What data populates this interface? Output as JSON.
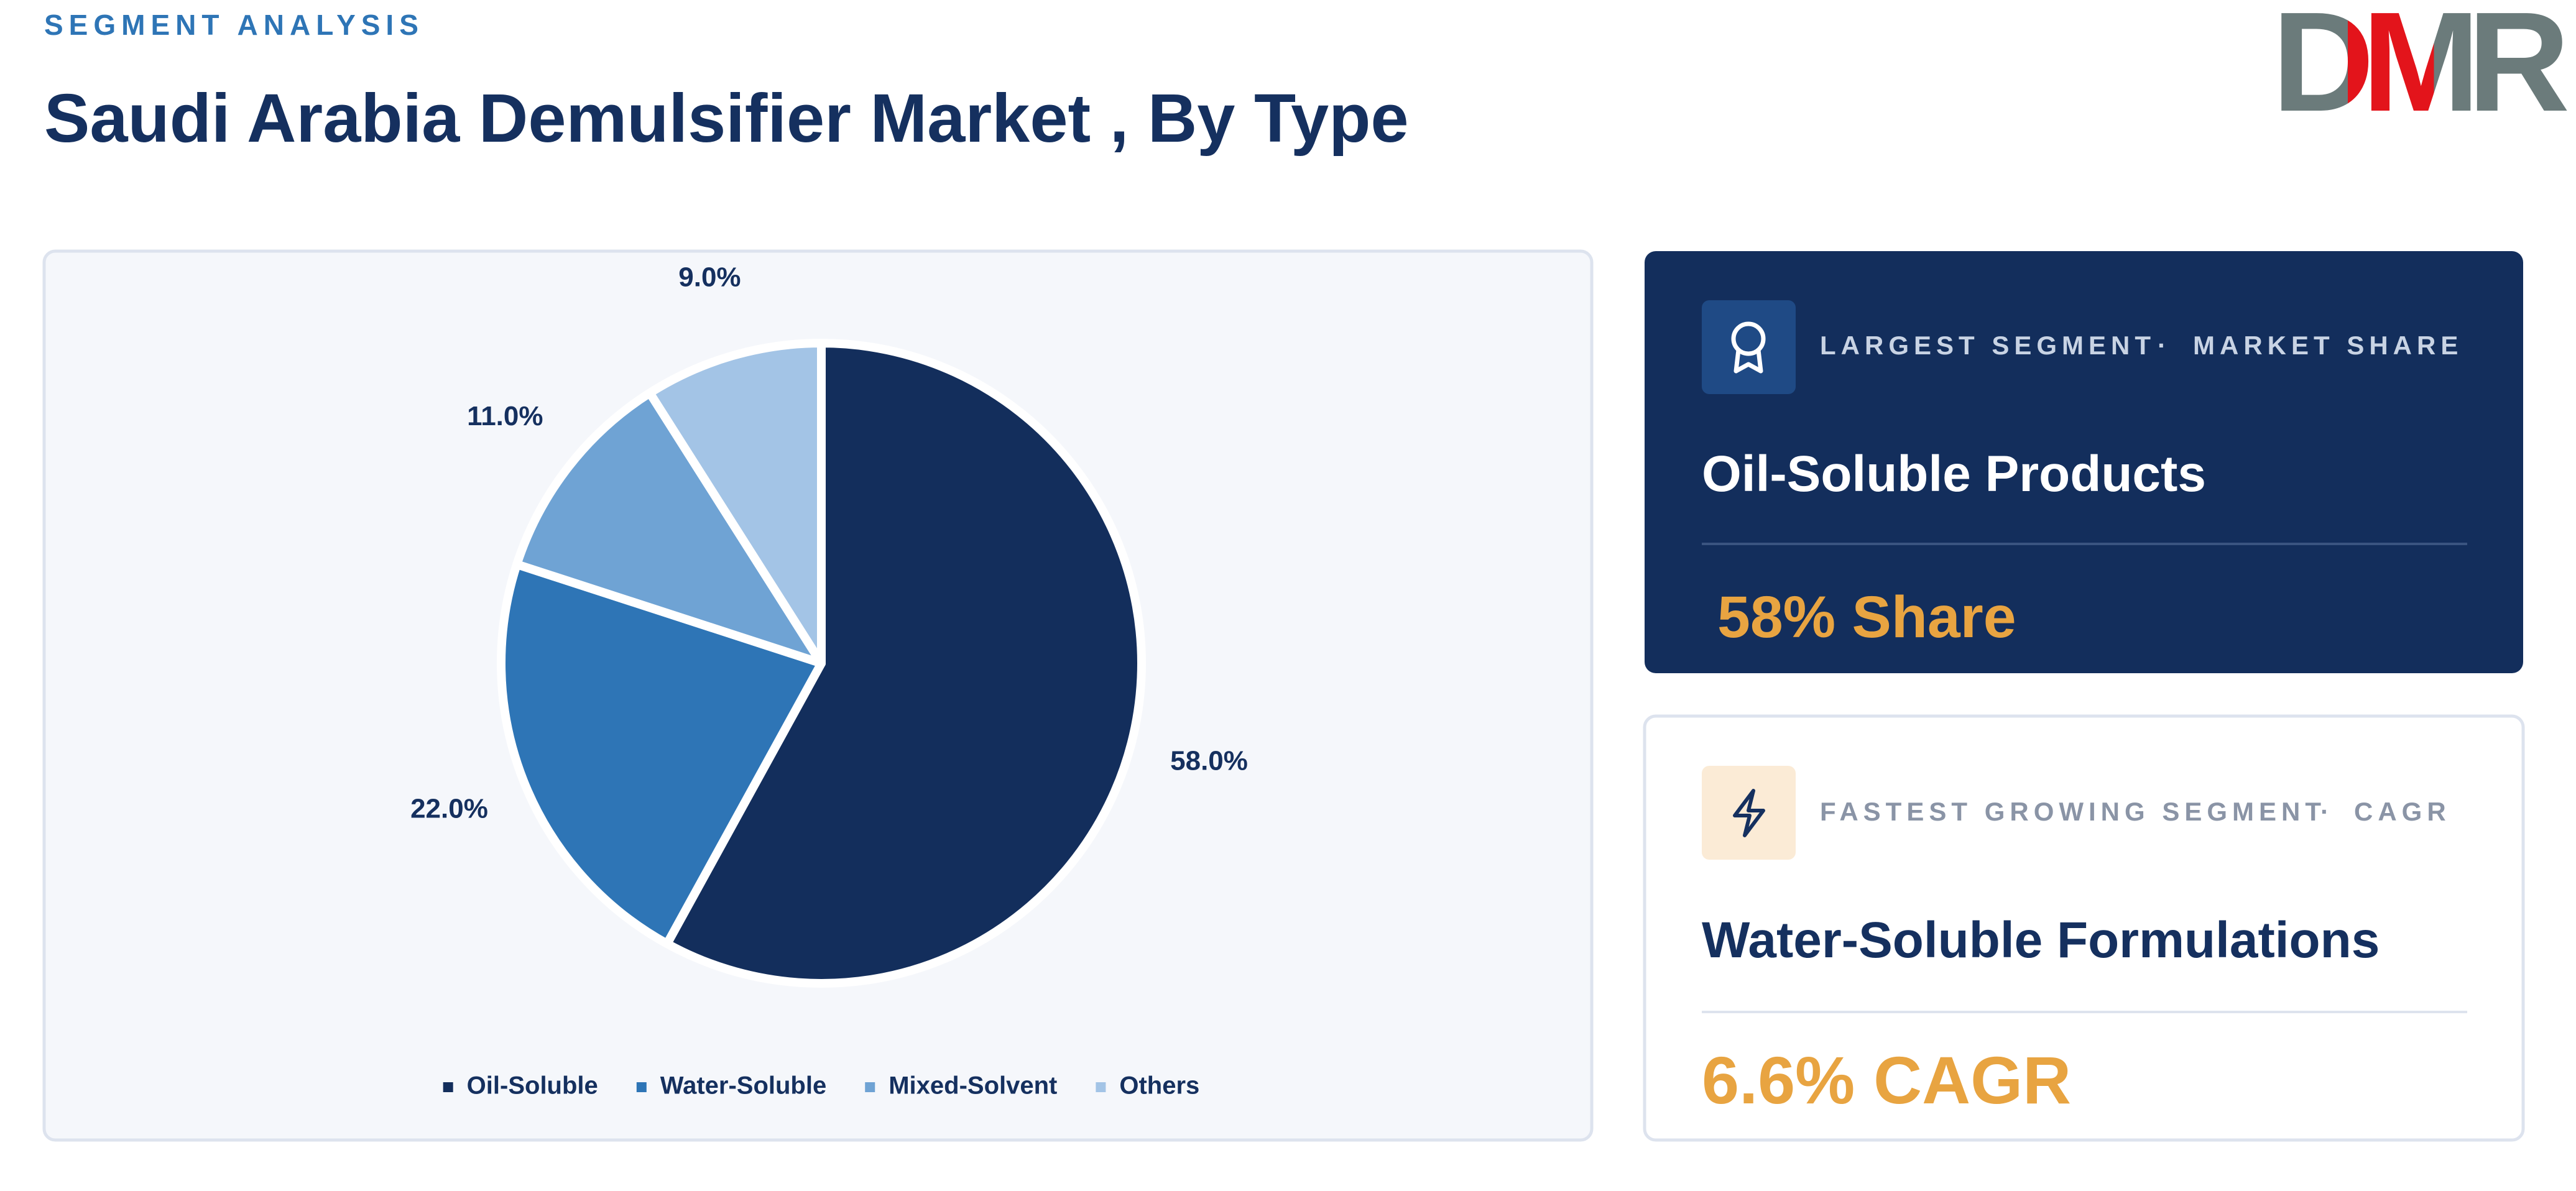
{
  "header": {
    "kicker": "SEGMENT ANALYSIS",
    "title": "Saudi Arabia Demulsifier Market , By Type",
    "logo": "DMR"
  },
  "chart_data": {
    "type": "pie",
    "categories": [
      "Oil-Soluble",
      "Water-Soluble",
      "Mixed-Solvent",
      "Others"
    ],
    "values": [
      58,
      22,
      11,
      9
    ],
    "value_labels": [
      "58.0%",
      "22.0%",
      "11.0%",
      "9.0%"
    ],
    "colors": [
      "#132e5c",
      "#2e75b6",
      "#6fa3d4",
      "#a3c4e6"
    ],
    "legend": "bottom"
  },
  "cards": [
    {
      "tag": "LARGEST SEGMENT",
      "metric": "MARKET SHARE",
      "heading": "Oil-Soluble Products",
      "value": "58% Share"
    },
    {
      "tag": "FASTEST GROWING SEGMENT",
      "metric": "CAGR",
      "heading": "Water-Soluble Formulations",
      "value": "6.6% CAGR"
    }
  ]
}
